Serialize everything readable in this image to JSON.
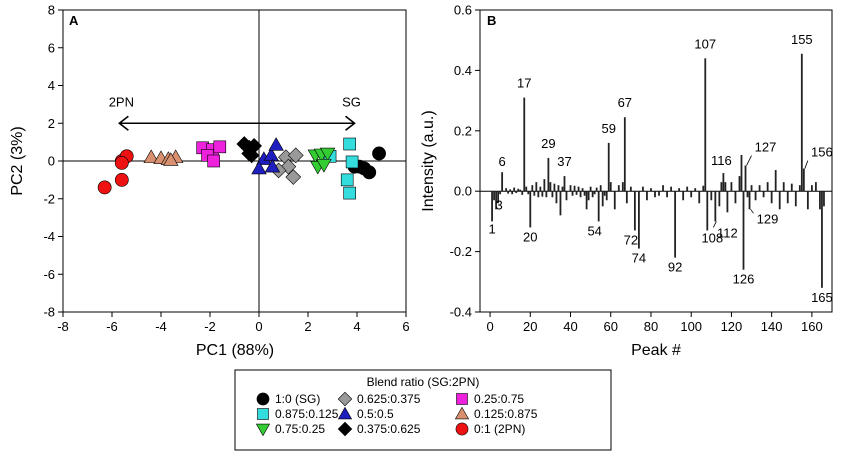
{
  "chart_data": [
    {
      "panel": "A",
      "type": "scatter",
      "xlabel": "PC1 (88%)",
      "ylabel": "PC2 (3%)",
      "xlim": [
        -8,
        6
      ],
      "ylim": [
        -8,
        8
      ],
      "xticks": [
        -8,
        -6,
        -4,
        -2,
        0,
        2,
        4,
        6
      ],
      "yticks": [
        -8,
        -6,
        -4,
        -2,
        0,
        2,
        4,
        6,
        8
      ],
      "arrow": {
        "from": -5.7,
        "to": 3.9,
        "y": 2.0,
        "left_label": "2PN",
        "right_label": "SG"
      },
      "series": [
        {
          "name": "1:0 (SG)",
          "marker": "circle",
          "color": "#000000",
          "points": [
            [
              3.9,
              -0.3
            ],
            [
              4.1,
              -0.3
            ],
            [
              4.3,
              -0.4
            ],
            [
              4.5,
              -0.6
            ],
            [
              4.9,
              0.4
            ]
          ]
        },
        {
          "name": "0.875:0.125",
          "marker": "square",
          "color": "#33dddd",
          "points": [
            [
              2.9,
              0.25
            ],
            [
              3.7,
              0.9
            ],
            [
              3.8,
              -0.05
            ],
            [
              3.6,
              -1.0
            ],
            [
              3.7,
              -1.7
            ]
          ]
        },
        {
          "name": "0.75:0.25",
          "marker": "triangle-down",
          "color": "#33cc33",
          "points": [
            [
              2.3,
              0.3
            ],
            [
              2.55,
              0.35
            ],
            [
              2.8,
              0.4
            ],
            [
              2.4,
              -0.3
            ],
            [
              2.65,
              -0.2
            ]
          ]
        },
        {
          "name": "0.625:0.375",
          "marker": "diamond",
          "color": "#999999",
          "points": [
            [
              1.1,
              0.2
            ],
            [
              1.5,
              0.3
            ],
            [
              1.2,
              -0.3
            ],
            [
              0.8,
              -0.5
            ],
            [
              1.4,
              -0.85
            ]
          ]
        },
        {
          "name": "0.5:0.5",
          "marker": "triangle-up",
          "color": "#1f1fbf",
          "points": [
            [
              0.2,
              0.1
            ],
            [
              0.5,
              0.3
            ],
            [
              0.7,
              0.85
            ],
            [
              0.0,
              -0.4
            ],
            [
              0.55,
              -0.3
            ]
          ]
        },
        {
          "name": "0.375:0.625",
          "marker": "diamond",
          "color": "#000000",
          "points": [
            [
              -0.6,
              0.9
            ],
            [
              -0.4,
              0.7
            ],
            [
              -0.4,
              0.4
            ],
            [
              -0.2,
              0.8
            ],
            [
              -0.3,
              0.3
            ]
          ]
        },
        {
          "name": "0.25:0.75",
          "marker": "square",
          "color": "#ee22dd",
          "points": [
            [
              -2.3,
              0.7
            ],
            [
              -1.9,
              0.6
            ],
            [
              -1.6,
              0.75
            ],
            [
              -2.1,
              0.3
            ],
            [
              -1.85,
              0.0
            ]
          ]
        },
        {
          "name": "0.125:0.875",
          "marker": "triangle-up",
          "color": "#d99070",
          "points": [
            [
              -4.4,
              0.2
            ],
            [
              -4.0,
              0.15
            ],
            [
              -3.7,
              0.1
            ],
            [
              -3.4,
              0.2
            ],
            [
              -3.6,
              0.05
            ]
          ]
        },
        {
          "name": "0:1 (2PN)",
          "marker": "circle",
          "color": "#ee1111",
          "points": [
            [
              -6.3,
              -1.4
            ],
            [
              -5.6,
              -1.0
            ],
            [
              -5.6,
              0.0
            ],
            [
              -5.4,
              0.25
            ],
            [
              -5.6,
              -0.1
            ]
          ]
        }
      ]
    },
    {
      "panel": "B",
      "type": "bar",
      "xlabel": "Peak #",
      "ylabel": "Intensity (a.u.)",
      "xlim": [
        -5,
        170
      ],
      "ylim": [
        -0.4,
        0.6
      ],
      "xticks": [
        0,
        20,
        40,
        60,
        80,
        100,
        120,
        140,
        160
      ],
      "yticks": [
        -0.4,
        -0.2,
        0.0,
        0.2,
        0.4,
        0.6
      ],
      "x": [
        1,
        2,
        3,
        4,
        5,
        6,
        8,
        9,
        10,
        11,
        12,
        13,
        14,
        15,
        16,
        17,
        18,
        19,
        20,
        21,
        22,
        23,
        24,
        25,
        26,
        27,
        28,
        29,
        30,
        31,
        32,
        33,
        34,
        35,
        36,
        37,
        38,
        40,
        41,
        42,
        43,
        44,
        45,
        46,
        47,
        48,
        49,
        50,
        51,
        52,
        53,
        54,
        55,
        56,
        57,
        58,
        59,
        60,
        62,
        64,
        66,
        67,
        68,
        70,
        72,
        74,
        76,
        78,
        80,
        82,
        84,
        86,
        88,
        90,
        92,
        94,
        96,
        98,
        100,
        102,
        104,
        106,
        107,
        108,
        110,
        112,
        114,
        115,
        116,
        117,
        118,
        120,
        122,
        124,
        125,
        126,
        127,
        128,
        129,
        130,
        132,
        134,
        136,
        138,
        140,
        142,
        144,
        146,
        148,
        150,
        152,
        154,
        155,
        156,
        158,
        160,
        162,
        164,
        165,
        166
      ],
      "values": [
        -0.1,
        -0.03,
        -0.06,
        -0.04,
        -0.01,
        0.063,
        0.01,
        -0.008,
        0.006,
        -0.01,
        0.012,
        -0.006,
        0.008,
        0.005,
        -0.012,
        0.31,
        0.015,
        -0.01,
        -0.12,
        0.02,
        -0.015,
        0.03,
        -0.02,
        0.015,
        -0.018,
        0.04,
        -0.02,
        0.11,
        0.03,
        -0.02,
        0.025,
        -0.04,
        0.02,
        -0.08,
        0.015,
        0.05,
        -0.03,
        0.02,
        -0.015,
        0.018,
        -0.012,
        0.015,
        -0.02,
        0.01,
        -0.015,
        -0.06,
        -0.03,
        0.015,
        -0.02,
        -0.01,
        0.012,
        -0.1,
        0.02,
        -0.05,
        -0.015,
        -0.03,
        0.16,
        0.03,
        -0.06,
        0.02,
        0.03,
        0.245,
        -0.04,
        0.015,
        -0.13,
        -0.19,
        0.015,
        -0.03,
        0.01,
        -0.02,
        -0.015,
        0.02,
        -0.02,
        0.015,
        -0.22,
        0.01,
        -0.03,
        0.015,
        -0.02,
        0.01,
        -0.04,
        0.018,
        0.44,
        -0.13,
        -0.03,
        -0.1,
        -0.05,
        0.03,
        0.06,
        0.03,
        -0.07,
        0.03,
        -0.04,
        0.05,
        0.12,
        -0.26,
        0.085,
        -0.02,
        -0.06,
        0.02,
        -0.03,
        0.02,
        -0.02,
        0.03,
        -0.04,
        0.07,
        -0.06,
        0.03,
        -0.04,
        0.025,
        -0.05,
        0.02,
        0.455,
        0.075,
        -0.06,
        0.02,
        0.03,
        -0.06,
        -0.32,
        -0.05
      ],
      "peak_labels": [
        {
          "peak": 1,
          "text": "1"
        },
        {
          "peak": 3,
          "text": "3"
        },
        {
          "peak": 6,
          "text": "6"
        },
        {
          "peak": 17,
          "text": "17"
        },
        {
          "peak": 20,
          "text": "20"
        },
        {
          "peak": 29,
          "text": "29"
        },
        {
          "peak": 37,
          "text": "37"
        },
        {
          "peak": 54,
          "text": "54"
        },
        {
          "peak": 59,
          "text": "59"
        },
        {
          "peak": 67,
          "text": "67"
        },
        {
          "peak": 72,
          "text": "72"
        },
        {
          "peak": 74,
          "text": "74"
        },
        {
          "peak": 92,
          "text": "92"
        },
        {
          "peak": 107,
          "text": "107"
        },
        {
          "peak": 108,
          "text": "108"
        },
        {
          "peak": 112,
          "text": "112"
        },
        {
          "peak": 116,
          "text": "116"
        },
        {
          "peak": 126,
          "text": "126"
        },
        {
          "peak": 127,
          "text": "127"
        },
        {
          "peak": 129,
          "text": "129"
        },
        {
          "peak": 155,
          "text": "155"
        },
        {
          "peak": 156,
          "text": "156"
        },
        {
          "peak": 165,
          "text": "165"
        }
      ]
    }
  ],
  "legend": {
    "title": "Blend ratio (SG:2PN)",
    "entries": [
      {
        "label": "1:0 (SG)",
        "marker": "circle",
        "color": "#000000"
      },
      {
        "label": "0.875:0.125",
        "marker": "square",
        "color": "#33dddd"
      },
      {
        "label": "0.75:0.25",
        "marker": "triangle-down",
        "color": "#33cc33"
      },
      {
        "label": "0.625:0.375",
        "marker": "diamond",
        "color": "#999999"
      },
      {
        "label": "0.5:0.5",
        "marker": "triangle-up",
        "color": "#1f1fbf"
      },
      {
        "label": "0.375:0.625",
        "marker": "diamond",
        "color": "#000000"
      },
      {
        "label": "0.25:0.75",
        "marker": "square",
        "color": "#ee22dd"
      },
      {
        "label": "0.125:0.875",
        "marker": "triangle-up",
        "color": "#d99070"
      },
      {
        "label": "0:1 (2PN)",
        "marker": "circle",
        "color": "#ee1111"
      }
    ]
  }
}
